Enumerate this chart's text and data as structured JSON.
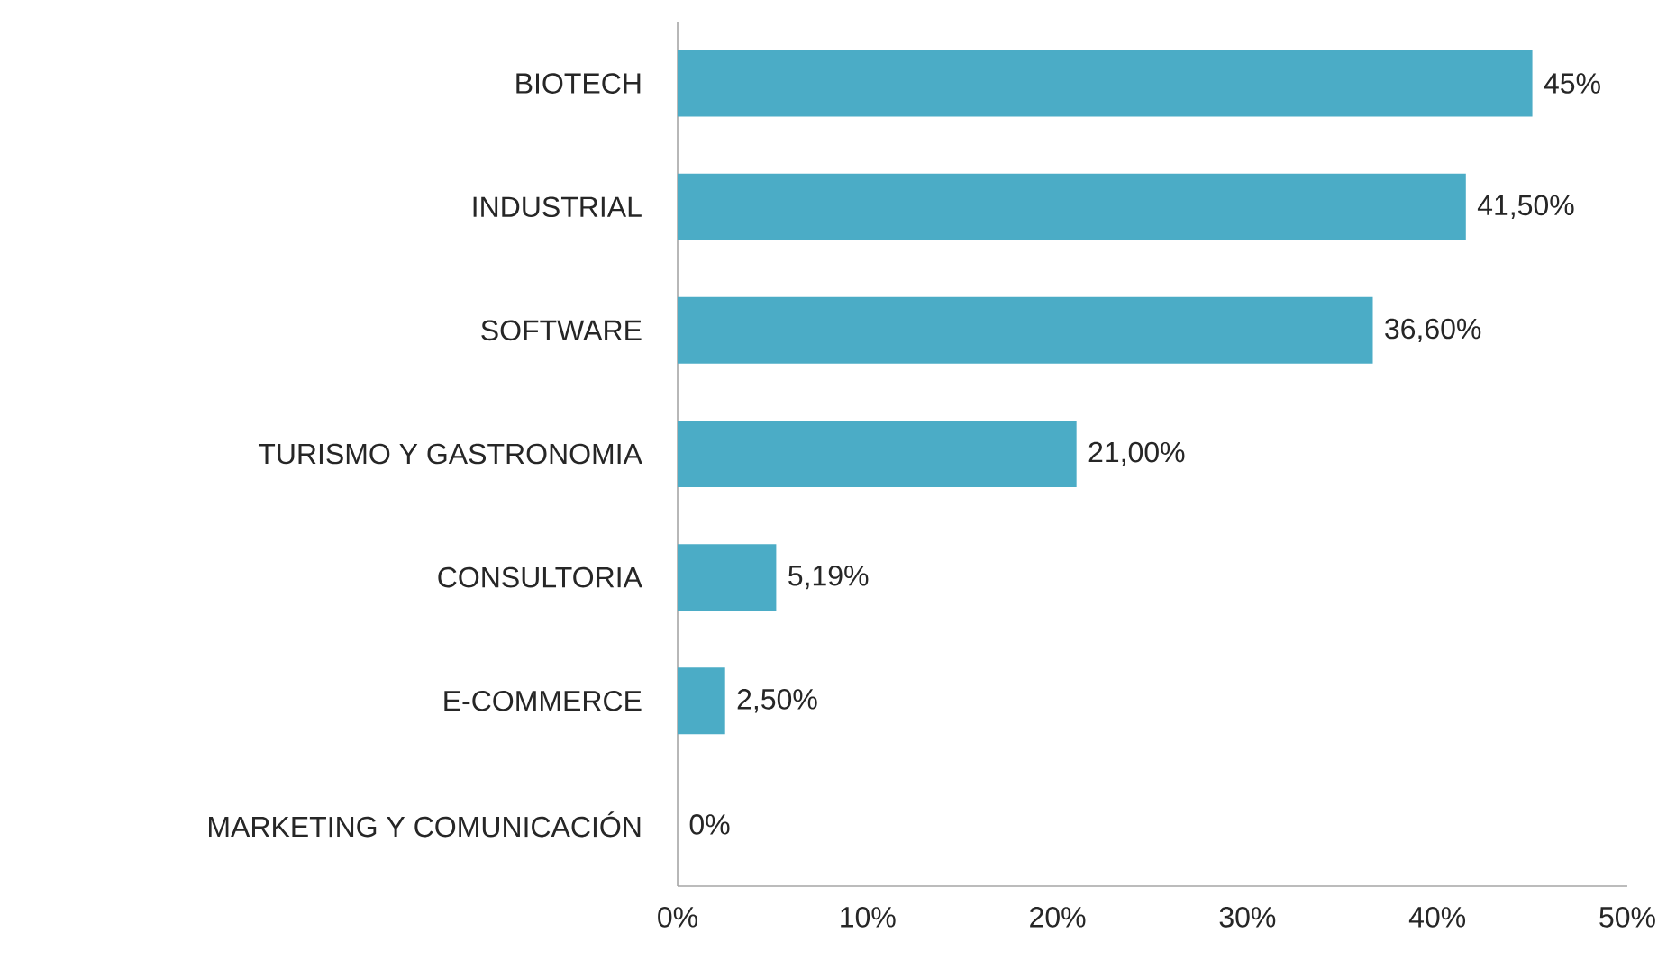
{
  "chart_data": {
    "type": "bar",
    "orientation": "horizontal",
    "categories": [
      "BIOTECH",
      "INDUSTRIAL",
      "SOFTWARE",
      "TURISMO Y GASTRONOMIA",
      "CONSULTORIA",
      "E-COMMERCE",
      "MARKETING Y COMUNICACIÓN"
    ],
    "values": [
      45,
      41.5,
      36.6,
      21.0,
      5.19,
      2.5,
      0
    ],
    "value_labels": [
      "45%",
      "41,50%",
      "36,60%",
      "21,00%",
      "5,19%",
      "2,50%",
      "0%"
    ],
    "color": "#4bacc6",
    "xlim": [
      0,
      50
    ],
    "xticks": [
      {
        "value": 0,
        "label": "0%"
      },
      {
        "value": 10,
        "label": "10%"
      },
      {
        "value": 20,
        "label": "20%"
      },
      {
        "value": 30,
        "label": "30%"
      },
      {
        "value": 40,
        "label": "40%"
      },
      {
        "value": 50,
        "label": "50%"
      }
    ]
  }
}
